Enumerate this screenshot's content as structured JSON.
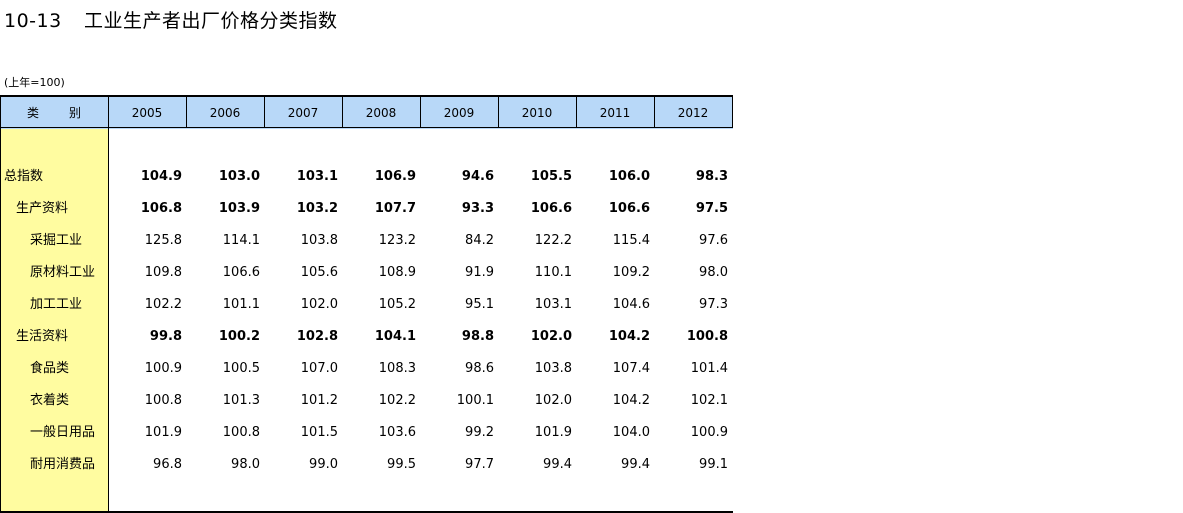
{
  "title": {
    "number": "10-13",
    "text": "工业生产者出厂价格分类指数"
  },
  "unit_note": "(上年=100)",
  "table": {
    "stub_header_left": "类",
    "stub_header_right": "别",
    "years": [
      "2005",
      "2006",
      "2007",
      "2008",
      "2009",
      "2010",
      "2011",
      "2012"
    ],
    "rows": [
      {
        "label": "总指数",
        "level": 0,
        "bold": true,
        "values": [
          "104.9",
          "103.0",
          "103.1",
          "106.9",
          "94.6",
          "105.5",
          "106.0",
          "98.3"
        ]
      },
      {
        "label": "生产资料",
        "level": 1,
        "bold": true,
        "values": [
          "106.8",
          "103.9",
          "103.2",
          "107.7",
          "93.3",
          "106.6",
          "106.6",
          "97.5"
        ]
      },
      {
        "label": "采掘工业",
        "level": 2,
        "bold": false,
        "values": [
          "125.8",
          "114.1",
          "103.8",
          "123.2",
          "84.2",
          "122.2",
          "115.4",
          "97.6"
        ]
      },
      {
        "label": "原材料工业",
        "level": 2,
        "bold": false,
        "values": [
          "109.8",
          "106.6",
          "105.6",
          "108.9",
          "91.9",
          "110.1",
          "109.2",
          "98.0"
        ]
      },
      {
        "label": "加工工业",
        "level": 2,
        "bold": false,
        "values": [
          "102.2",
          "101.1",
          "102.0",
          "105.2",
          "95.1",
          "103.1",
          "104.6",
          "97.3"
        ]
      },
      {
        "label": "生活资料",
        "level": 1,
        "bold": true,
        "values": [
          "99.8",
          "100.2",
          "102.8",
          "104.1",
          "98.8",
          "102.0",
          "104.2",
          "100.8"
        ]
      },
      {
        "label": "食品类",
        "level": 2,
        "bold": false,
        "values": [
          "100.9",
          "100.5",
          "107.0",
          "108.3",
          "98.6",
          "103.8",
          "107.4",
          "101.4"
        ]
      },
      {
        "label": "衣着类",
        "level": 2,
        "bold": false,
        "values": [
          "100.8",
          "101.3",
          "101.2",
          "102.2",
          "100.1",
          "102.0",
          "104.2",
          "102.1"
        ]
      },
      {
        "label": "一般日用品",
        "level": 2,
        "bold": false,
        "values": [
          "101.9",
          "100.8",
          "101.5",
          "103.6",
          "99.2",
          "101.9",
          "104.0",
          "100.9"
        ]
      },
      {
        "label": "耐用消费品",
        "level": 2,
        "bold": false,
        "values": [
          "96.8",
          "98.0",
          "99.0",
          "99.5",
          "97.7",
          "99.4",
          "99.4",
          "99.1"
        ]
      }
    ]
  },
  "colors": {
    "header_bg": "#b8d8f8",
    "stub_bg": "#fffca0",
    "rule": "#000000"
  }
}
